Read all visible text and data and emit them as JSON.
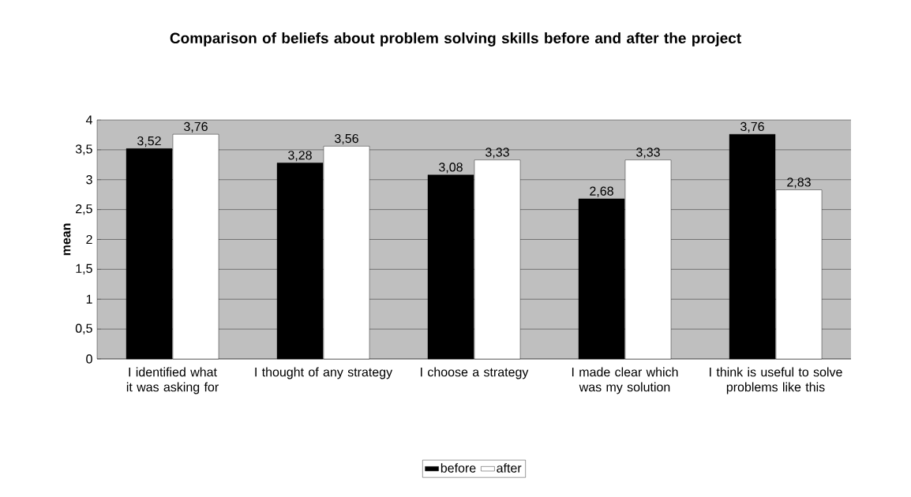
{
  "chart_data": {
    "type": "bar",
    "title": "Comparison of beliefs about problem solving skills before and after the project",
    "ylabel": "mean",
    "categories": [
      "I identified what it was asking for",
      "I thought of any strategy",
      "I choose a strategy",
      "I made clear which was my solution",
      "I think is useful to solve problems like this"
    ],
    "series": [
      {
        "name": "before",
        "color": "#000000",
        "values": [
          3.52,
          3.28,
          3.08,
          2.68,
          3.76
        ],
        "value_labels": [
          "3,52",
          "3,28",
          "3,08",
          "2,68",
          "3,76"
        ]
      },
      {
        "name": "after",
        "color": "#ffffff",
        "values": [
          3.76,
          3.56,
          3.33,
          3.33,
          2.83
        ],
        "value_labels": [
          "3,76",
          "3,56",
          "3,33",
          "3,33",
          "2,83"
        ]
      }
    ],
    "ylim": [
      0,
      4
    ],
    "yticks": [
      0,
      {
        "value": 0.5,
        "label": "0,5"
      },
      1,
      {
        "value": 1.5,
        "label": "1,5"
      },
      2,
      {
        "value": 2.5,
        "label": "2,5"
      },
      3,
      {
        "value": 3.5,
        "label": "3,5"
      },
      4
    ],
    "grid": "y",
    "legend": "bottom"
  }
}
